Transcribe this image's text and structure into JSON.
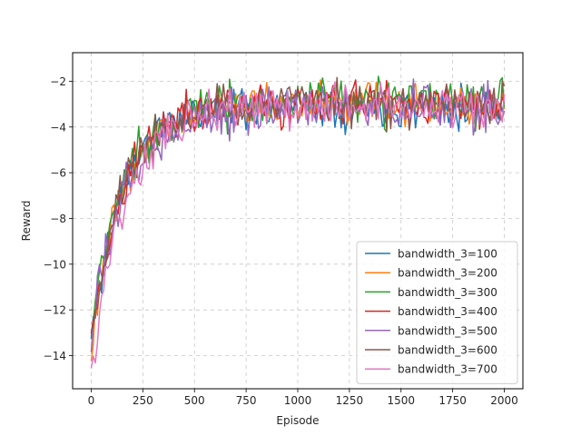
{
  "chart_data": {
    "type": "line",
    "title": "",
    "xlabel": "Episode",
    "ylabel": "Reward",
    "xlim": [
      -90,
      2090
    ],
    "ylim": [
      -15.45,
      -0.75
    ],
    "xticks": [
      0,
      250,
      500,
      750,
      1000,
      1250,
      1500,
      1750,
      2000
    ],
    "yticks": [
      -14,
      -12,
      -10,
      -8,
      -6,
      -4,
      -2
    ],
    "grid": true,
    "legend_position": "lower-right",
    "series_sampling": {
      "start": 0,
      "step": 10,
      "count": 201
    },
    "series": [
      {
        "name": "bandwidth_3=100",
        "color": "#1f77b4",
        "seed": 11,
        "start": -13.4,
        "end": -3.05,
        "tau": 150,
        "noise": 0.45
      },
      {
        "name": "bandwidth_3=200",
        "color": "#ff7f0e",
        "seed": 23,
        "start": -13.6,
        "end": -2.95,
        "tau": 155,
        "noise": 0.45
      },
      {
        "name": "bandwidth_3=300",
        "color": "#2ca02c",
        "seed": 37,
        "start": -13.2,
        "end": -2.9,
        "tau": 145,
        "noise": 0.5
      },
      {
        "name": "bandwidth_3=400",
        "color": "#d62728",
        "seed": 41,
        "start": -13.5,
        "end": -3.0,
        "tau": 150,
        "noise": 0.48
      },
      {
        "name": "bandwidth_3=500",
        "color": "#9467bd",
        "seed": 53,
        "start": -13.3,
        "end": -3.15,
        "tau": 160,
        "noise": 0.5
      },
      {
        "name": "bandwidth_3=600",
        "color": "#8c564b",
        "seed": 67,
        "start": -13.4,
        "end": -3.0,
        "tau": 152,
        "noise": 0.5
      },
      {
        "name": "bandwidth_3=700",
        "color": "#e377c2",
        "seed": 79,
        "start": -14.8,
        "end": -3.1,
        "tau": 158,
        "noise": 0.45
      }
    ]
  }
}
